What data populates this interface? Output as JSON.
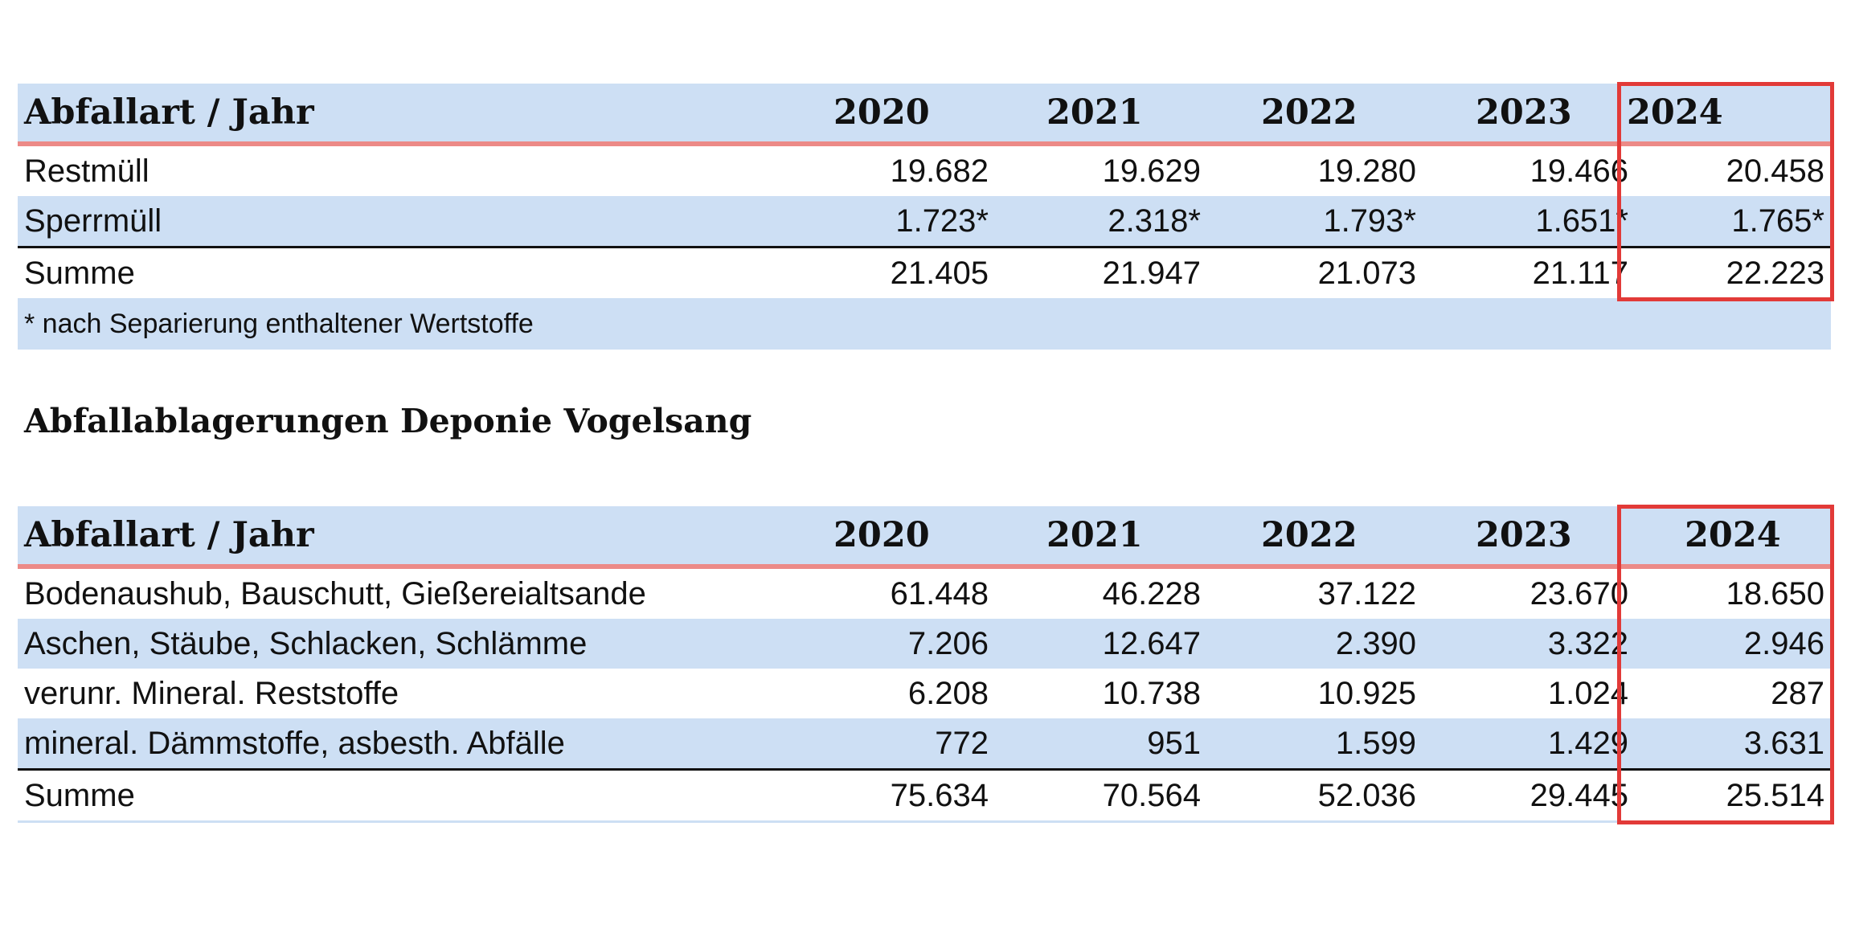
{
  "table1": {
    "header": {
      "label": "Abfallart  / Jahr",
      "years": [
        "2020",
        "2021",
        "2022",
        "2023",
        "2024"
      ]
    },
    "rows": [
      {
        "label": "Restmüll",
        "values": [
          "19.682",
          "19.629",
          "19.280",
          "19.466",
          "20.458"
        ]
      },
      {
        "label": "Sperrmüll",
        "values": [
          "1.723*",
          "2.318*",
          "1.793*",
          "1.651*",
          "1.765*"
        ]
      },
      {
        "label": "Summe",
        "values": [
          "21.405",
          "21.947",
          "21.073",
          "21.117",
          "22.223"
        ]
      }
    ],
    "footnote": "* nach Separierung enthaltener Wertstoffe"
  },
  "section_title": "Abfallablagerungen Deponie Vogelsang",
  "table2": {
    "header": {
      "label": "Abfallart  /  Jahr",
      "years": [
        "2020",
        "2021",
        "2022",
        "2023",
        "2024"
      ]
    },
    "rows": [
      {
        "label": "Bodenaushub, Bauschutt, Gießereialtsande",
        "values": [
          "61.448",
          "46.228",
          "37.122",
          "23.670",
          "18.650"
        ]
      },
      {
        "label": "Aschen, Stäube, Schlacken, Schlämme",
        "values": [
          "7.206",
          "12.647",
          "2.390",
          "3.322",
          "2.946"
        ]
      },
      {
        "label": "verunr. Mineral. Reststoffe",
        "values": [
          "6.208",
          "10.738",
          "10.925",
          "1.024",
          "287"
        ]
      },
      {
        "label": "mineral. Dämmstoffe, asbesth. Abfälle",
        "values": [
          "772",
          "951",
          "1.599",
          "1.429",
          "3.631"
        ]
      },
      {
        "label": "Summe",
        "values": [
          "75.634",
          "70.564",
          "52.036",
          "29.445",
          "25.514"
        ]
      }
    ]
  },
  "colors": {
    "header_bg": "#cddff4",
    "header_rule": "#ec8a87",
    "highlight": "#e23a38"
  }
}
